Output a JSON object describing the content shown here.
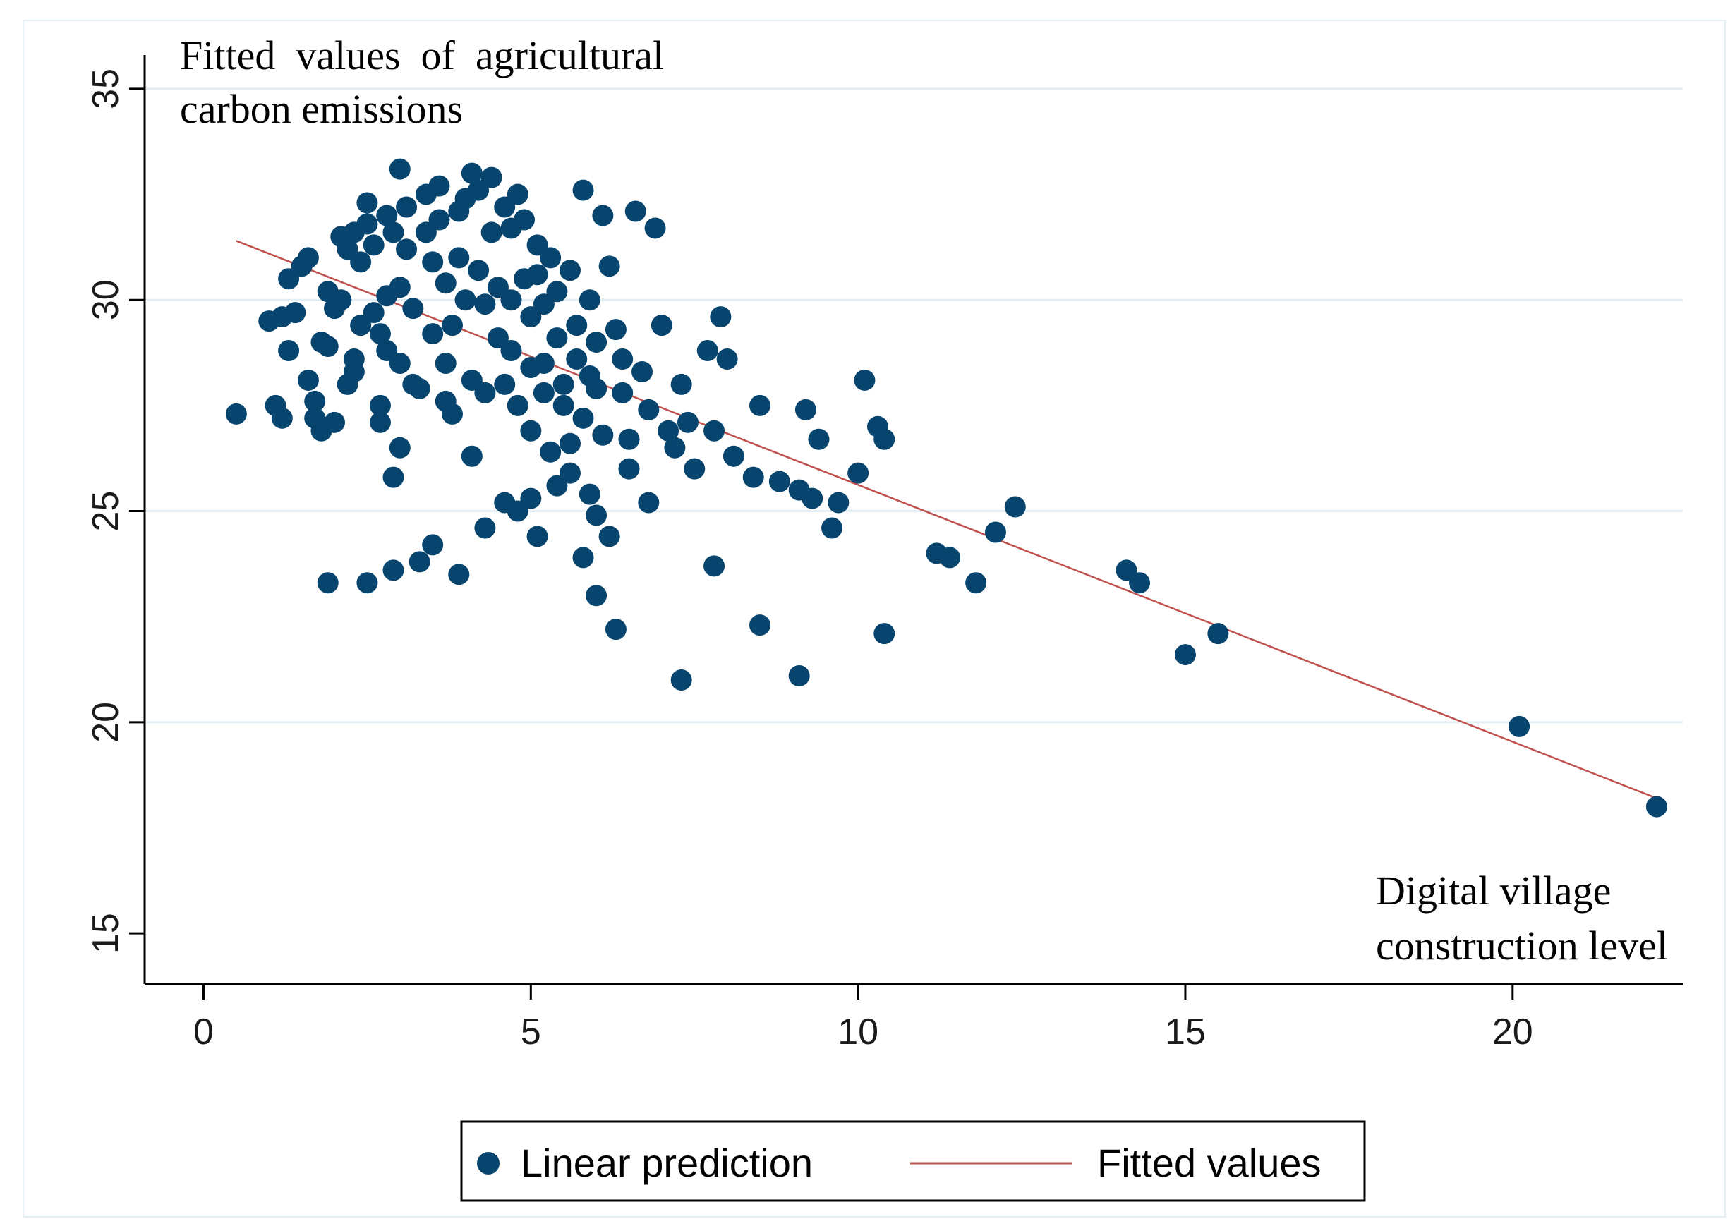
{
  "chart_data": {
    "type": "scatter",
    "title": "",
    "ylabel_annotation": [
      "Fitted  values  of  agricultural",
      "carbon emissions"
    ],
    "xlabel_annotation": [
      "Digital village",
      "construction level"
    ],
    "xlim": [
      -0.9,
      22.6
    ],
    "ylim": [
      13.8,
      35.8
    ],
    "x_ticks": [
      0,
      5,
      10,
      15,
      20
    ],
    "y_ticks": [
      15,
      20,
      25,
      30,
      35
    ],
    "grid": "horizontal",
    "colors": {
      "points": "#08456e",
      "line": "#c0504d",
      "grid": "#e3eef4",
      "axis": "#000000"
    },
    "series": [
      {
        "name": "Linear prediction",
        "kind": "scatter",
        "points": [
          [
            0.5,
            27.3
          ],
          [
            1.1,
            27.5
          ],
          [
            1.2,
            27.2
          ],
          [
            1.0,
            29.5
          ],
          [
            1.2,
            29.6
          ],
          [
            1.4,
            29.7
          ],
          [
            1.3,
            28.8
          ],
          [
            1.3,
            30.5
          ],
          [
            1.5,
            30.8
          ],
          [
            1.6,
            31.0
          ],
          [
            1.6,
            28.1
          ],
          [
            1.7,
            27.6
          ],
          [
            1.7,
            27.2
          ],
          [
            1.8,
            26.9
          ],
          [
            1.8,
            29.0
          ],
          [
            1.9,
            28.9
          ],
          [
            1.9,
            30.2
          ],
          [
            2.0,
            29.8
          ],
          [
            2.0,
            27.1
          ],
          [
            2.1,
            30.0
          ],
          [
            2.1,
            31.5
          ],
          [
            2.2,
            31.2
          ],
          [
            2.3,
            31.6
          ],
          [
            2.2,
            28.0
          ],
          [
            2.3,
            28.3
          ],
          [
            2.3,
            28.6
          ],
          [
            2.4,
            29.4
          ],
          [
            2.4,
            30.9
          ],
          [
            2.5,
            31.8
          ],
          [
            2.5,
            32.3
          ],
          [
            2.6,
            31.3
          ],
          [
            2.6,
            29.7
          ],
          [
            2.7,
            29.2
          ],
          [
            2.7,
            27.5
          ],
          [
            2.7,
            27.1
          ],
          [
            2.8,
            28.8
          ],
          [
            2.8,
            30.1
          ],
          [
            2.8,
            32.0
          ],
          [
            2.9,
            31.6
          ],
          [
            2.9,
            25.8
          ],
          [
            3.0,
            26.5
          ],
          [
            3.0,
            28.5
          ],
          [
            3.0,
            30.3
          ],
          [
            3.0,
            33.1
          ],
          [
            3.1,
            32.2
          ],
          [
            3.1,
            31.2
          ],
          [
            3.2,
            29.8
          ],
          [
            3.2,
            28.0
          ],
          [
            3.3,
            27.9
          ],
          [
            3.4,
            32.5
          ],
          [
            3.4,
            31.6
          ],
          [
            3.5,
            30.9
          ],
          [
            3.5,
            29.2
          ],
          [
            3.6,
            32.7
          ],
          [
            3.6,
            31.9
          ],
          [
            3.7,
            30.4
          ],
          [
            3.7,
            28.5
          ],
          [
            3.7,
            27.6
          ],
          [
            3.8,
            27.3
          ],
          [
            3.8,
            29.4
          ],
          [
            3.9,
            31.0
          ],
          [
            3.9,
            32.1
          ],
          [
            4.0,
            32.4
          ],
          [
            4.0,
            30.0
          ],
          [
            4.1,
            28.1
          ],
          [
            4.1,
            26.3
          ],
          [
            4.1,
            33.0
          ],
          [
            4.2,
            32.6
          ],
          [
            4.2,
            30.7
          ],
          [
            4.3,
            29.9
          ],
          [
            4.3,
            27.8
          ],
          [
            4.4,
            32.9
          ],
          [
            4.4,
            31.6
          ],
          [
            4.5,
            30.3
          ],
          [
            4.5,
            29.1
          ],
          [
            4.6,
            28.0
          ],
          [
            4.6,
            32.2
          ],
          [
            4.7,
            31.7
          ],
          [
            4.7,
            30.0
          ],
          [
            4.7,
            28.8
          ],
          [
            4.8,
            27.5
          ],
          [
            4.8,
            32.5
          ],
          [
            4.9,
            31.9
          ],
          [
            4.9,
            30.5
          ],
          [
            5.0,
            29.6
          ],
          [
            5.0,
            28.4
          ],
          [
            5.0,
            26.9
          ],
          [
            5.1,
            31.3
          ],
          [
            5.1,
            30.6
          ],
          [
            5.2,
            29.9
          ],
          [
            5.2,
            28.5
          ],
          [
            5.2,
            27.8
          ],
          [
            5.3,
            26.4
          ],
          [
            5.3,
            31.0
          ],
          [
            5.4,
            30.2
          ],
          [
            5.4,
            29.1
          ],
          [
            5.5,
            28.0
          ],
          [
            5.5,
            27.5
          ],
          [
            5.6,
            26.6
          ],
          [
            5.6,
            30.7
          ],
          [
            5.7,
            29.4
          ],
          [
            5.7,
            28.6
          ],
          [
            5.8,
            27.2
          ],
          [
            5.8,
            32.6
          ],
          [
            5.9,
            30.0
          ],
          [
            5.9,
            28.2
          ],
          [
            6.0,
            29.0
          ],
          [
            6.0,
            27.9
          ],
          [
            6.1,
            26.8
          ],
          [
            6.1,
            32.0
          ],
          [
            6.2,
            30.8
          ],
          [
            6.3,
            29.3
          ],
          [
            6.4,
            28.6
          ],
          [
            6.4,
            27.8
          ],
          [
            6.5,
            26.7
          ],
          [
            6.6,
            32.1
          ],
          [
            6.7,
            28.3
          ],
          [
            6.8,
            27.4
          ],
          [
            6.9,
            31.7
          ],
          [
            7.0,
            29.4
          ],
          [
            7.1,
            26.9
          ],
          [
            7.2,
            26.5
          ],
          [
            7.3,
            28.0
          ],
          [
            7.4,
            27.1
          ],
          [
            7.5,
            26.0
          ],
          [
            7.7,
            28.8
          ],
          [
            7.8,
            26.9
          ],
          [
            7.9,
            29.6
          ],
          [
            8.0,
            28.6
          ],
          [
            8.1,
            26.3
          ],
          [
            8.4,
            25.8
          ],
          [
            8.5,
            27.5
          ],
          [
            8.8,
            25.7
          ],
          [
            9.1,
            25.5
          ],
          [
            9.2,
            27.4
          ],
          [
            9.4,
            26.7
          ],
          [
            9.7,
            25.2
          ],
          [
            10.1,
            28.1
          ],
          [
            10.3,
            27.0
          ],
          [
            1.9,
            23.3
          ],
          [
            2.9,
            23.6
          ],
          [
            3.3,
            23.8
          ],
          [
            3.5,
            24.2
          ],
          [
            4.3,
            24.6
          ],
          [
            4.6,
            25.2
          ],
          [
            4.8,
            25.0
          ],
          [
            5.0,
            25.3
          ],
          [
            5.4,
            25.6
          ],
          [
            5.6,
            25.9
          ],
          [
            5.9,
            25.4
          ],
          [
            6.0,
            24.9
          ],
          [
            6.2,
            24.4
          ],
          [
            6.5,
            26.0
          ],
          [
            6.8,
            25.2
          ],
          [
            2.5,
            23.3
          ],
          [
            3.9,
            23.5
          ],
          [
            5.1,
            24.4
          ],
          [
            5.8,
            23.9
          ],
          [
            6.0,
            23.0
          ],
          [
            6.3,
            22.2
          ],
          [
            7.3,
            21.0
          ],
          [
            7.8,
            23.7
          ],
          [
            8.5,
            22.3
          ],
          [
            9.1,
            21.1
          ],
          [
            9.6,
            24.6
          ],
          [
            10.4,
            22.1
          ],
          [
            9.3,
            25.3
          ],
          [
            10.0,
            25.9
          ],
          [
            10.4,
            26.7
          ],
          [
            11.2,
            24.0
          ],
          [
            11.4,
            23.9
          ],
          [
            11.8,
            23.3
          ],
          [
            12.1,
            24.5
          ],
          [
            12.4,
            25.1
          ],
          [
            14.1,
            23.6
          ],
          [
            14.3,
            23.3
          ],
          [
            15.0,
            21.6
          ],
          [
            15.5,
            22.1
          ],
          [
            20.1,
            19.9
          ],
          [
            22.2,
            18.0
          ]
        ]
      },
      {
        "name": "Fitted values",
        "kind": "line",
        "points": [
          [
            0.5,
            31.4
          ],
          [
            22.2,
            18.2
          ]
        ]
      }
    ],
    "legend": {
      "placement": "bottom-center",
      "entries": [
        "Linear prediction",
        "Fitted values"
      ]
    }
  }
}
